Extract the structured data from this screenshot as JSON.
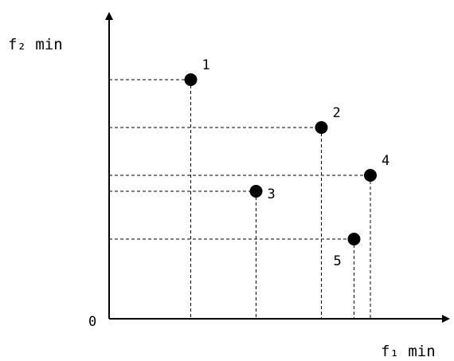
{
  "chart_data": {
    "type": "scatter",
    "title": "",
    "xlabel": "f₁ min",
    "ylabel": "f₂ min",
    "origin_label": "0",
    "grid": false,
    "axis_ticks": false,
    "guide_lines": "dashed projections from each point to both axes",
    "points": [
      {
        "label": "1",
        "x": 2.5,
        "y": 7.5
      },
      {
        "label": "2",
        "x": 6.5,
        "y": 6.0
      },
      {
        "label": "3",
        "x": 4.5,
        "y": 4.0
      },
      {
        "label": "4",
        "x": 8.0,
        "y": 4.5
      },
      {
        "label": "5",
        "x": 7.5,
        "y": 2.5
      }
    ],
    "xlim": [
      0,
      10
    ],
    "ylim": [
      0,
      10
    ],
    "colors": {
      "axis": "#000000",
      "point": "#000000",
      "guide": "#000000"
    }
  }
}
